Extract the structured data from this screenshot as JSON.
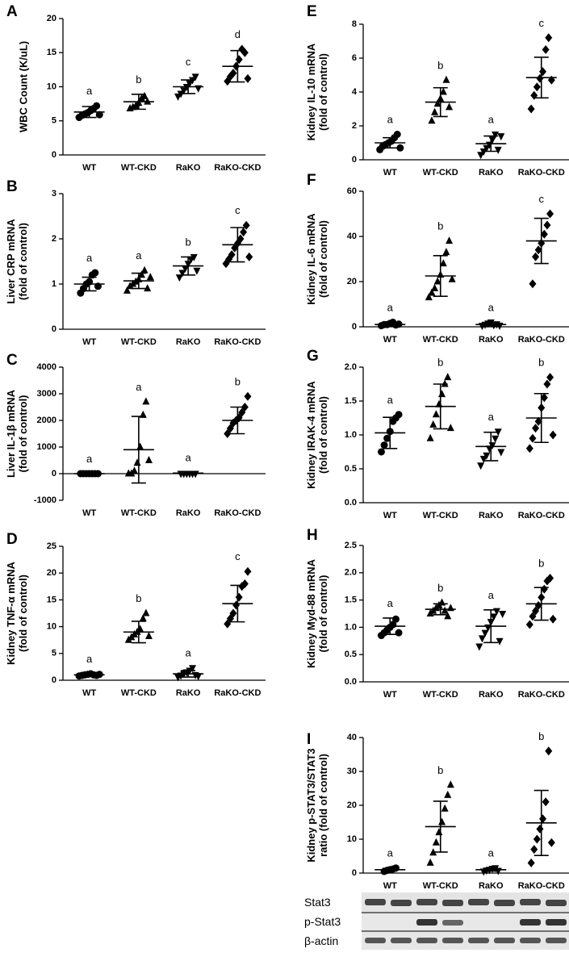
{
  "chart_data": [
    {
      "type": "dotplot",
      "panel": "A",
      "ylabel": [
        "WBC Count (K/uL)"
      ],
      "categories": [
        "WT",
        "WT-CKD",
        "RaKO",
        "RaKO-CKD"
      ],
      "ylim": [
        0,
        20
      ],
      "yticks": [
        0,
        5,
        10,
        15,
        20
      ],
      "groups": [
        {
          "points": [
            5.5,
            5.8,
            6.0,
            6.2,
            6.5,
            6.8,
            7.2,
            5.9
          ],
          "mean": 6.3,
          "sd": 0.8,
          "letter": "a"
        },
        {
          "points": [
            6.8,
            7.0,
            7.2,
            7.6,
            8.3,
            8.6,
            7.8
          ],
          "mean": 7.8,
          "sd": 1.1,
          "letter": "b"
        },
        {
          "points": [
            8.6,
            9.0,
            9.5,
            10.0,
            10.5,
            11.0,
            11.5,
            9.8
          ],
          "mean": 10.0,
          "sd": 1.0,
          "letter": "c"
        },
        {
          "points": [
            10.8,
            11.5,
            12.0,
            13.0,
            14.0,
            15.5,
            15.0,
            11.2
          ],
          "mean": 13.0,
          "sd": 2.3,
          "letter": "d"
        }
      ]
    },
    {
      "type": "dotplot",
      "panel": "B",
      "ylabel": [
        "Liver CRP mRNA",
        "(fold of control)"
      ],
      "categories": [
        "WT",
        "WT-CKD",
        "RaKO",
        "RaKO-CKD"
      ],
      "ylim": [
        0,
        3
      ],
      "yticks": [
        0,
        1,
        2,
        3
      ],
      "groups": [
        {
          "points": [
            0.8,
            0.9,
            1.0,
            1.05,
            1.2,
            1.25,
            0.95
          ],
          "mean": 1.0,
          "sd": 0.15,
          "letter": "a"
        },
        {
          "points": [
            0.85,
            0.95,
            1.0,
            1.05,
            1.1,
            1.2,
            1.3,
            0.9,
            1.15
          ],
          "mean": 1.07,
          "sd": 0.17,
          "letter": "a"
        },
        {
          "points": [
            1.15,
            1.25,
            1.35,
            1.45,
            1.55,
            1.6,
            1.3
          ],
          "mean": 1.4,
          "sd": 0.2,
          "letter": "b"
        },
        {
          "points": [
            1.45,
            1.55,
            1.65,
            1.8,
            1.9,
            2.0,
            2.15,
            2.3,
            1.6
          ],
          "mean": 1.87,
          "sd": 0.38,
          "letter": "c"
        }
      ]
    },
    {
      "type": "dotplot",
      "panel": "C",
      "ylabel": [
        "Liver IL-1β mRNA",
        "(fold of control)"
      ],
      "categories": [
        "WT",
        "WT-CKD",
        "RaKO",
        "RaKO-CKD"
      ],
      "ylim": [
        -1000,
        4000
      ],
      "yticks": [
        -1000,
        0,
        1000,
        2000,
        3000,
        4000
      ],
      "groups": [
        {
          "points": [
            0,
            0,
            0,
            0,
            0,
            0,
            0
          ],
          "mean": 0,
          "sd": 0,
          "letter": "a"
        },
        {
          "points": [
            0,
            0,
            100,
            400,
            1000,
            2200,
            2700,
            500
          ],
          "mean": 900,
          "sd": 1250,
          "letter": "a"
        },
        {
          "points": [
            0,
            0,
            0,
            0,
            0,
            0
          ],
          "mean": 20,
          "sd": 30,
          "letter": "a"
        },
        {
          "points": [
            1500,
            1700,
            1900,
            2000,
            2100,
            2300,
            2500,
            2900
          ],
          "mean": 2000,
          "sd": 500,
          "letter": "b"
        }
      ]
    },
    {
      "type": "dotplot",
      "panel": "D",
      "ylabel": [
        "Kidney TNF-α mRNA",
        "(fold of control)"
      ],
      "categories": [
        "WT",
        "WT-CKD",
        "RaKO",
        "RaKO-CKD"
      ],
      "ylim": [
        0,
        25
      ],
      "yticks": [
        0,
        5,
        10,
        15,
        20,
        25
      ],
      "groups": [
        {
          "points": [
            0.8,
            0.9,
            1.0,
            1.1,
            1.2,
            1.0,
            0.9,
            1.1
          ],
          "mean": 1.0,
          "sd": 0.15,
          "letter": "a"
        },
        {
          "points": [
            7.5,
            8.0,
            8.5,
            9.0,
            9.5,
            11.5,
            12.5,
            8.2
          ],
          "mean": 9.0,
          "sd": 2.0,
          "letter": "b"
        },
        {
          "points": [
            0.6,
            0.9,
            1.2,
            1.5,
            1.8,
            2.3,
            1.0,
            0.8
          ],
          "mean": 1.2,
          "sd": 0.6,
          "letter": "a"
        },
        {
          "points": [
            10.5,
            11.5,
            12.5,
            14.0,
            15.5,
            17.5,
            18.0,
            20.3
          ],
          "mean": 14.3,
          "sd": 3.4,
          "letter": "c"
        }
      ]
    },
    {
      "type": "dotplot",
      "panel": "E",
      "ylabel": [
        "Kidney IL-10 mRNA",
        "(fold of control)"
      ],
      "categories": [
        "WT",
        "WT-CKD",
        "RaKO",
        "RaKO-CKD"
      ],
      "ylim": [
        0,
        8
      ],
      "yticks": [
        0,
        2,
        4,
        6,
        8
      ],
      "groups": [
        {
          "points": [
            0.6,
            0.8,
            0.9,
            1.0,
            1.1,
            1.3,
            1.5,
            0.7
          ],
          "mean": 1.0,
          "sd": 0.3,
          "letter": "a"
        },
        {
          "points": [
            2.3,
            2.8,
            3.3,
            3.6,
            4.0,
            4.7,
            3.1
          ],
          "mean": 3.4,
          "sd": 0.85,
          "letter": "b"
        },
        {
          "points": [
            0.3,
            0.5,
            0.7,
            0.9,
            1.2,
            1.5,
            0.6,
            1.4
          ],
          "mean": 0.95,
          "sd": 0.45,
          "letter": "a"
        },
        {
          "points": [
            3.0,
            3.8,
            4.3,
            4.8,
            5.2,
            6.5,
            7.2,
            4.7
          ],
          "mean": 4.85,
          "sd": 1.2,
          "letter": "c"
        }
      ]
    },
    {
      "type": "dotplot",
      "panel": "F",
      "ylabel": [
        "Kidney IL-6 mRNA",
        "(fold of control)"
      ],
      "categories": [
        "WT",
        "WT-CKD",
        "RaKO",
        "RaKO-CKD"
      ],
      "ylim": [
        0,
        60
      ],
      "yticks": [
        0,
        20,
        40,
        60
      ],
      "groups": [
        {
          "points": [
            0.5,
            1,
            1,
            1.5,
            2,
            0.8,
            1.2
          ],
          "mean": 1,
          "sd": 0.5,
          "letter": "a"
        },
        {
          "points": [
            13,
            15,
            17,
            20,
            23,
            28,
            33,
            38,
            21
          ],
          "mean": 22.5,
          "sd": 9,
          "letter": "b"
        },
        {
          "points": [
            0.5,
            1,
            1.5,
            2,
            0.8,
            1.2,
            0.6
          ],
          "mean": 1,
          "sd": 0.5,
          "letter": "a"
        },
        {
          "points": [
            19,
            31,
            34,
            37,
            41,
            45,
            50
          ],
          "mean": 38,
          "sd": 10,
          "letter": "c"
        }
      ]
    },
    {
      "type": "dotplot",
      "panel": "G",
      "ylabel": [
        "Kidney IRAK-4 mRNA",
        "(fold of control)"
      ],
      "categories": [
        "WT",
        "WT-CKD",
        "RaKO",
        "RaKO-CKD"
      ],
      "ylim": [
        0,
        2
      ],
      "yticks": [
        {
          "value": 0,
          "label": "0.0"
        },
        0.5,
        {
          "value": 1,
          "label": "1.0"
        },
        1.5,
        {
          "value": 2,
          "label": "2.0"
        }
      ],
      "groups": [
        {
          "points": [
            0.75,
            0.85,
            0.95,
            1.05,
            1.2,
            1.25,
            1.3
          ],
          "mean": 1.03,
          "sd": 0.23,
          "letter": "a"
        },
        {
          "points": [
            0.95,
            1.15,
            1.3,
            1.45,
            1.6,
            1.75,
            1.85,
            1.1
          ],
          "mean": 1.42,
          "sd": 0.33,
          "letter": "b"
        },
        {
          "points": [
            0.55,
            0.65,
            0.7,
            0.8,
            0.85,
            0.95,
            1.05,
            0.75
          ],
          "mean": 0.83,
          "sd": 0.21,
          "letter": "a"
        },
        {
          "points": [
            0.8,
            0.95,
            1.1,
            1.2,
            1.4,
            1.55,
            1.75,
            1.85,
            1.0
          ],
          "mean": 1.25,
          "sd": 0.36,
          "letter": "b"
        }
      ]
    },
    {
      "type": "dotplot",
      "panel": "H",
      "ylabel": [
        "Kidney Myd-88 mRNA",
        "(fold of control)"
      ],
      "categories": [
        "WT",
        "WT-CKD",
        "RaKO",
        "RaKO-CKD"
      ],
      "ylim": [
        0,
        2.5
      ],
      "yticks": [
        {
          "value": 0,
          "label": "0.0"
        },
        0.5,
        {
          "value": 1,
          "label": "1.0"
        },
        1.5,
        {
          "value": 2,
          "label": "2.0"
        },
        2.5
      ],
      "groups": [
        {
          "points": [
            0.85,
            0.9,
            0.95,
            1.0,
            1.05,
            1.15,
            0.9
          ],
          "mean": 1.02,
          "sd": 0.15,
          "letter": "a"
        },
        {
          "points": [
            1.25,
            1.3,
            1.35,
            1.4,
            1.45,
            1.3,
            1.2,
            1.35
          ],
          "mean": 1.33,
          "sd": 0.1,
          "letter": "b"
        },
        {
          "points": [
            0.65,
            0.8,
            0.9,
            1.0,
            1.1,
            1.2,
            1.3,
            0.75,
            1.25
          ],
          "mean": 1.02,
          "sd": 0.3,
          "letter": "a"
        },
        {
          "points": [
            1.05,
            1.2,
            1.3,
            1.4,
            1.55,
            1.7,
            1.85,
            1.9,
            1.15
          ],
          "mean": 1.43,
          "sd": 0.3,
          "letter": "b"
        }
      ]
    },
    {
      "type": "dotplot",
      "panel": "I",
      "ylabel": [
        "Kidney p-STAT3/STAT3",
        "ratio (fold of control)"
      ],
      "categories": [
        "WT",
        "WT-CKD",
        "RaKO",
        "RaKO-CKD"
      ],
      "ylim": [
        0,
        40
      ],
      "yticks": [
        0,
        10,
        20,
        30,
        40
      ],
      "groups": [
        {
          "points": [
            0.5,
            0.8,
            1,
            1.2,
            1.5
          ],
          "mean": 1,
          "sd": 0.4,
          "letter": "a"
        },
        {
          "points": [
            3,
            6,
            9,
            12,
            15,
            19,
            23,
            26
          ],
          "mean": 13.7,
          "sd": 7.5,
          "letter": "b"
        },
        {
          "points": [
            0.5,
            0.8,
            1,
            1.3,
            1.5,
            0.7
          ],
          "mean": 1,
          "sd": 0.4,
          "letter": "a"
        },
        {
          "points": [
            3,
            7,
            10,
            13,
            16,
            21,
            36,
            9
          ],
          "mean": 14.8,
          "sd": 9.6,
          "letter": "b"
        }
      ]
    }
  ],
  "blot": {
    "labels": [
      "Stat3",
      "p-Stat3",
      "β-actin"
    ]
  }
}
